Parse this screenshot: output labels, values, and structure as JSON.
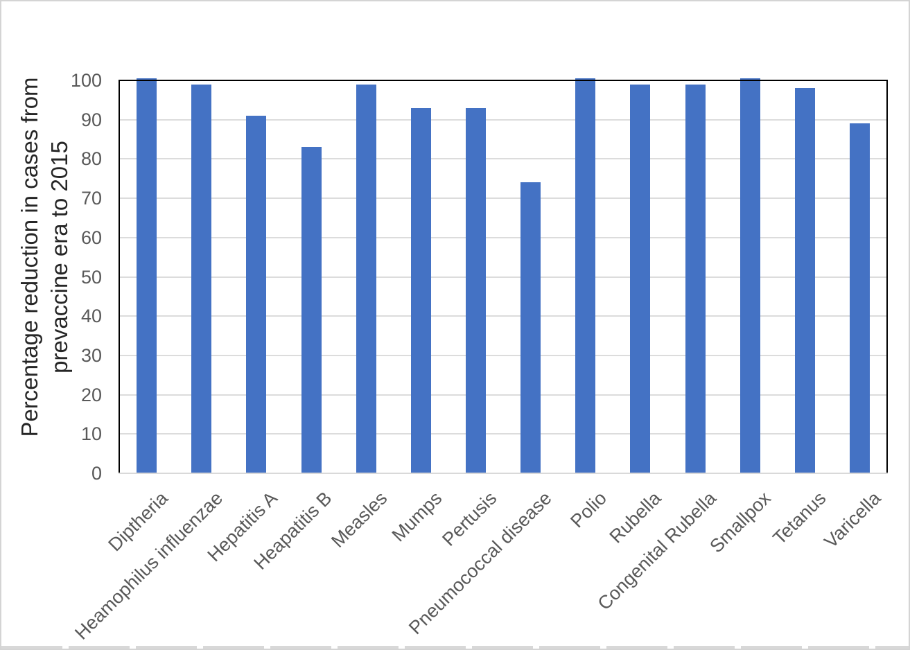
{
  "chart_data": {
    "type": "bar",
    "title": "",
    "ylabel_lines": [
      "Percentage reduction in cases from",
      "prevaccine era to 2015"
    ],
    "categories": [
      "Diptheria",
      "Heamophilus influenzae",
      "Hepatitis A",
      "Heapatitis B",
      "Measles",
      "Mumps",
      "Pertusis",
      "Pneumococcal disease",
      "Polio",
      "Rubella",
      "Congenital Rubella",
      "Smallpox",
      "Tetanus",
      "Varicella"
    ],
    "values": [
      100,
      99,
      91,
      83,
      99,
      93,
      93,
      74,
      100,
      99,
      99,
      100,
      98,
      89
    ],
    "y_ticks": [
      100,
      90,
      80,
      70,
      60,
      50,
      40,
      30,
      20,
      10,
      0
    ],
    "ylim": [
      0,
      100
    ],
    "grid": true,
    "legend": "none",
    "colors": {
      "bar": "#4472c4",
      "gridline": "#dcdcdc",
      "axis_line": "#000000",
      "baseline": "#d9d9d9",
      "tick_label": "#595959",
      "axis_title": "#262626"
    }
  }
}
